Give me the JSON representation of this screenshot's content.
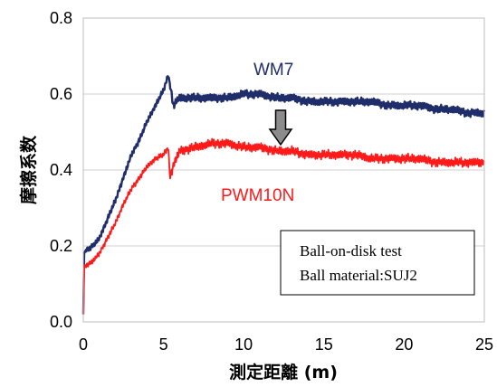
{
  "chart_data": {
    "type": "line",
    "xlabel": "測定距離 (m)",
    "ylabel": "摩擦系数",
    "xlim": [
      0,
      25
    ],
    "ylim": [
      0,
      0.8
    ],
    "x_ticks": [
      "0",
      "5",
      "10",
      "15",
      "20",
      "25"
    ],
    "y_ticks": [
      "0.0",
      "0.2",
      "0.4",
      "0.6",
      "0.8"
    ],
    "grid": "horizontal",
    "colors": {
      "wm7": "#1f2d6b",
      "pwm10n": "#ff1a1a",
      "arrow": "#8c8c8c"
    },
    "series": [
      {
        "name": "WM7",
        "color": "#1f2d6b",
        "x": [
          0,
          0.05,
          0.2,
          0.6,
          1.0,
          1.5,
          2.0,
          2.5,
          3.0,
          3.5,
          4.0,
          4.5,
          5.0,
          5.3,
          5.5,
          5.6,
          6,
          7,
          8,
          9,
          10,
          11,
          12,
          13,
          14,
          15,
          16,
          17,
          18,
          19,
          20,
          21,
          22,
          23,
          24,
          25
        ],
        "values": [
          0.02,
          0.18,
          0.19,
          0.2,
          0.22,
          0.27,
          0.32,
          0.38,
          0.44,
          0.48,
          0.53,
          0.57,
          0.61,
          0.65,
          0.6,
          0.57,
          0.59,
          0.59,
          0.59,
          0.59,
          0.6,
          0.6,
          0.59,
          0.59,
          0.58,
          0.58,
          0.58,
          0.58,
          0.58,
          0.57,
          0.57,
          0.57,
          0.56,
          0.56,
          0.55,
          0.55
        ]
      },
      {
        "name": "PWM10N",
        "color": "#ff1a1a",
        "x": [
          0,
          0.05,
          0.2,
          0.6,
          1.0,
          1.5,
          2.0,
          2.5,
          3.0,
          3.5,
          4.0,
          4.5,
          5.0,
          5.3,
          5.4,
          5.6,
          6,
          7,
          8,
          9,
          10,
          11,
          12,
          13,
          14,
          15,
          16,
          17,
          18,
          19,
          20,
          21,
          22,
          23,
          24,
          25
        ],
        "values": [
          0.02,
          0.14,
          0.15,
          0.16,
          0.18,
          0.22,
          0.26,
          0.31,
          0.35,
          0.38,
          0.41,
          0.43,
          0.44,
          0.46,
          0.38,
          0.41,
          0.45,
          0.46,
          0.47,
          0.47,
          0.46,
          0.46,
          0.45,
          0.45,
          0.44,
          0.44,
          0.44,
          0.44,
          0.43,
          0.43,
          0.43,
          0.43,
          0.42,
          0.42,
          0.42,
          0.42
        ]
      }
    ],
    "annotations": {
      "wm7_label": "WM7",
      "pwm10n_label": "PWM10N",
      "note_line1": "Ball-on-disk test",
      "note_line2": "Ball material:SUJ2"
    }
  }
}
